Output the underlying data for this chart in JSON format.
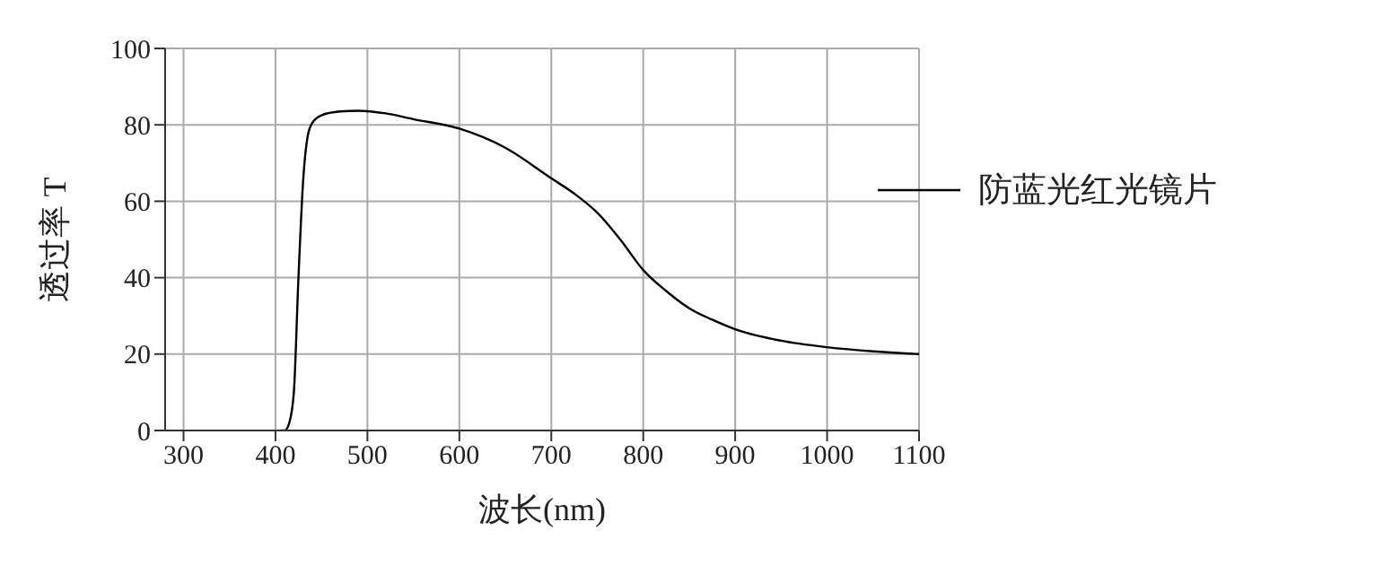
{
  "chart_data": {
    "type": "line",
    "xlabel": "波长(nm)",
    "ylabel": "透过率 T",
    "xlim": [
      280,
      1100
    ],
    "xticks": [
      300,
      400,
      500,
      600,
      700,
      800,
      900,
      1000,
      1100
    ],
    "ylim": [
      0,
      100
    ],
    "yticks": [
      0,
      20,
      40,
      60,
      80,
      100
    ],
    "grid": true,
    "legend": "top right",
    "marker": "none",
    "line_style": "solid",
    "series": [
      {
        "name": "防蓝光红光镜片",
        "color": "#000000",
        "x": [
          405,
          410,
          415,
          420,
          425,
          430,
          435,
          440,
          450,
          470,
          490,
          520,
          550,
          600,
          650,
          700,
          725,
          750,
          775,
          800,
          825,
          850,
          875,
          900,
          950,
          1000,
          1050,
          1100
        ],
        "values": [
          0,
          0,
          2,
          10,
          40,
          65,
          77,
          80.5,
          82.5,
          83.5,
          83.7,
          83,
          81.5,
          79,
          74,
          66,
          62,
          57,
          50,
          42,
          36.5,
          32,
          29,
          26.5,
          23.5,
          21.8,
          20.7,
          20
        ]
      }
    ]
  }
}
